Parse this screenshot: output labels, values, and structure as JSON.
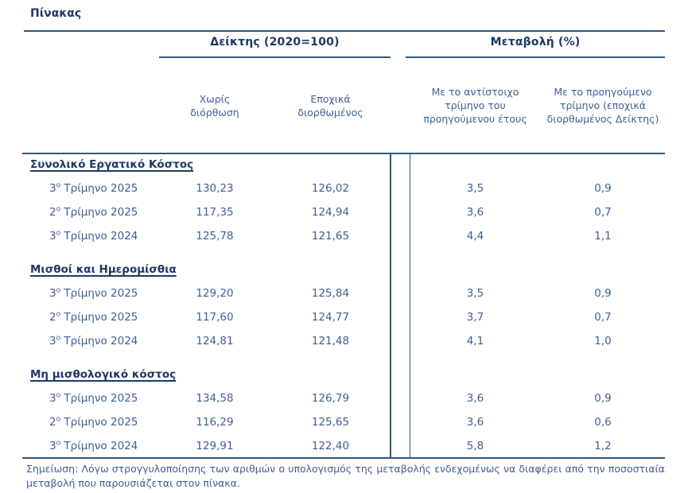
{
  "title": "Πίνακας",
  "colors": {
    "heading_navy": "#1F3864",
    "body_blue": "#3E5F94",
    "rule_blue": "#2F5A7E",
    "background": "#FFFFFF"
  },
  "header": {
    "group_index": "Δείκτης (2020=100)",
    "group_change": "Μεταβολή (%)",
    "col_unadjusted": "Χωρίς διόρθωση",
    "col_seasonal": "Εποχικά διορθωμένος",
    "col_yoy": "Με το αντίστοιχο τρίμηνο του προηγούμενου έτους",
    "col_qoq": "Με το προηγούμενο τρίμηνο (εποχικά διορθωμένος Δείκτης)"
  },
  "sections": [
    {
      "name": "Συνολικό Εργατικό Κόστος",
      "rows": [
        {
          "q_num": "3",
          "q_sup": "ο",
          "q_rest": " Τρίμηνο 2025",
          "unadjusted": "130,23",
          "seasonal": "126,02",
          "yoy": "3,5",
          "qoq": "0,9"
        },
        {
          "q_num": "2",
          "q_sup": "ο",
          "q_rest": " Τρίμηνο 2025",
          "unadjusted": "117,35",
          "seasonal": "124,94",
          "yoy": "3,6",
          "qoq": "0,7"
        },
        {
          "q_num": "3",
          "q_sup": "ο",
          "q_rest": " Τρίμηνο 2024",
          "unadjusted": "125,78",
          "seasonal": "121,65",
          "yoy": "4,4",
          "qoq": "1,1"
        }
      ]
    },
    {
      "name": "Μισθοί και Ημερομίσθια",
      "rows": [
        {
          "q_num": "3",
          "q_sup": "ο",
          "q_rest": " Τρίμηνο 2025",
          "unadjusted": "129,20",
          "seasonal": "125,84",
          "yoy": "3,5",
          "qoq": "0,9"
        },
        {
          "q_num": "2",
          "q_sup": "ο",
          "q_rest": " Τρίμηνο 2025",
          "unadjusted": "117,60",
          "seasonal": "124,77",
          "yoy": "3,7",
          "qoq": "0,7"
        },
        {
          "q_num": "3",
          "q_sup": "ο",
          "q_rest": " Τρίμηνο 2024",
          "unadjusted": "124,81",
          "seasonal": "121,48",
          "yoy": "4,1",
          "qoq": "1,0"
        }
      ]
    },
    {
      "name": "Μη μισθολογικό κόστος",
      "rows": [
        {
          "q_num": "3",
          "q_sup": "ο",
          "q_rest": " Τρίμηνο 2025",
          "unadjusted": "134,58",
          "seasonal": "126,79",
          "yoy": "3,6",
          "qoq": "0,9"
        },
        {
          "q_num": "2",
          "q_sup": "ο",
          "q_rest": " Τρίμηνο 2025",
          "unadjusted": "116,29",
          "seasonal": "125,65",
          "yoy": "3,6",
          "qoq": "0,6"
        },
        {
          "q_num": "3",
          "q_sup": "ο",
          "q_rest": " Τρίμηνο 2024",
          "unadjusted": "129,91",
          "seasonal": "122,40",
          "yoy": "5,8",
          "qoq": "1,2"
        }
      ]
    }
  ],
  "note": "Σημείωση: Λόγω στρογγυλοποίησης των αριθμών ο υπολογισμός της μεταβολής ενδεχομένως να διαφέρει από την ποσοστιαία μεταβολή που παρουσιάζεται στον πίνακα."
}
